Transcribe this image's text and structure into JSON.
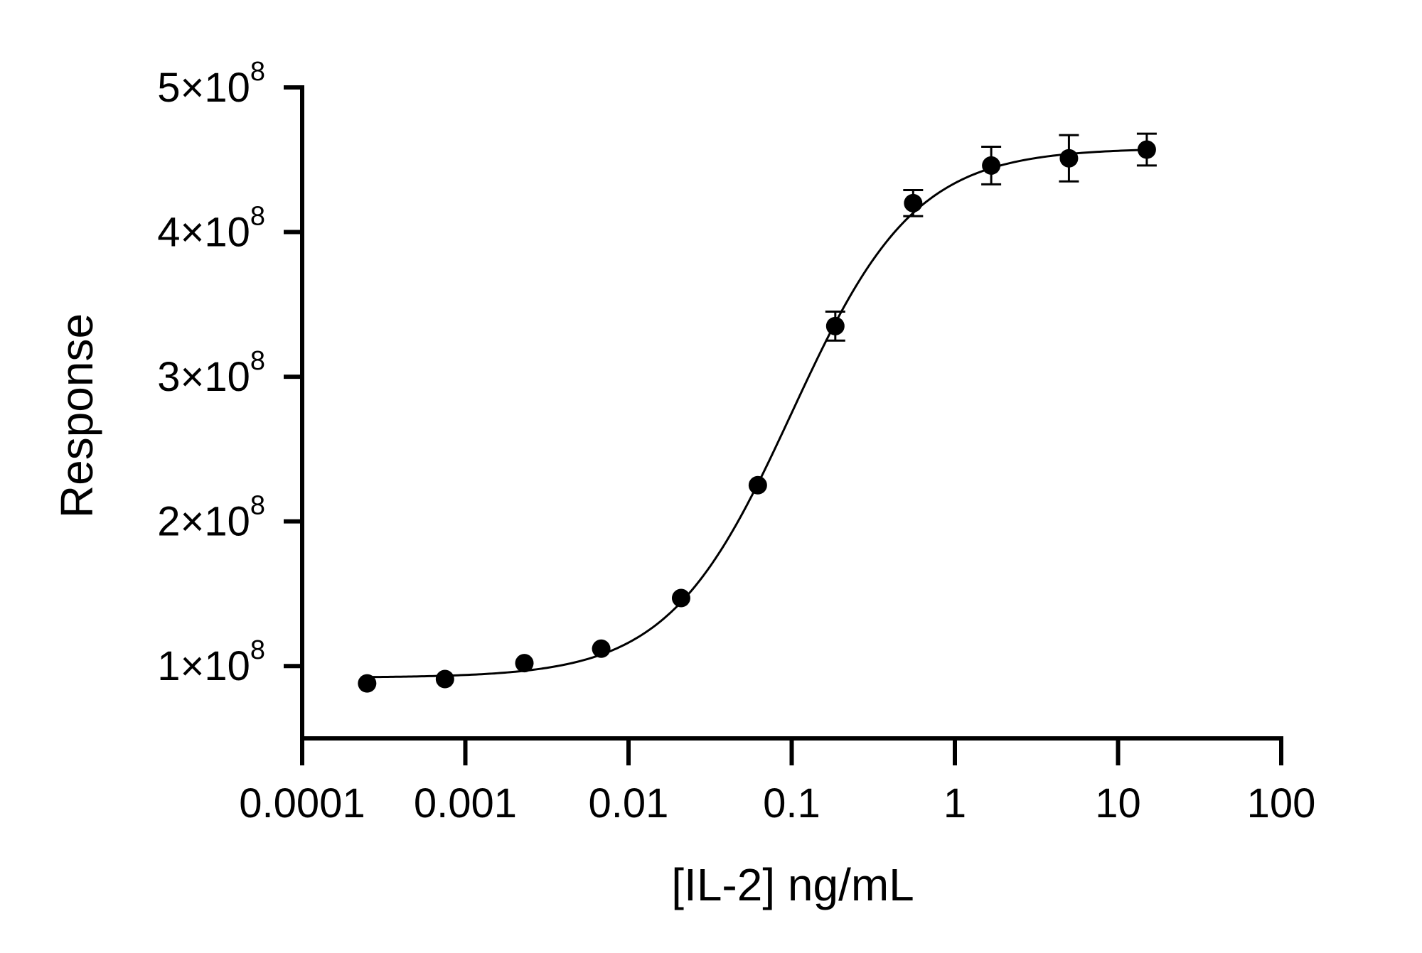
{
  "chart_data": {
    "type": "scatter",
    "xlabel": "[IL-2] ng/mL",
    "ylabel": "Response",
    "x_scale": "log",
    "xlim": [
      0.0001,
      100
    ],
    "ylim": [
      50000000,
      500000000
    ],
    "x_ticks": [
      0.0001,
      0.001,
      0.01,
      0.1,
      1,
      10,
      100
    ],
    "x_tick_labels": [
      "0.0001",
      "0.001",
      "0.01",
      "0.1",
      "1",
      "10",
      "100"
    ],
    "y_ticks": [
      100000000,
      200000000,
      300000000,
      400000000,
      500000000
    ],
    "y_tick_labels": [
      {
        "mantissa": "1",
        "times": "×",
        "base": "10",
        "exp": "8"
      },
      {
        "mantissa": "2",
        "times": "×",
        "base": "10",
        "exp": "8"
      },
      {
        "mantissa": "3",
        "times": "×",
        "base": "10",
        "exp": "8"
      },
      {
        "mantissa": "4",
        "times": "×",
        "base": "10",
        "exp": "8"
      },
      {
        "mantissa": "5",
        "times": "×",
        "base": "10",
        "exp": "8"
      }
    ],
    "grid": false,
    "series": [
      {
        "marker": "filled-circle",
        "color": "#000000",
        "points": [
          {
            "x": 0.00025,
            "y": 88000000,
            "err": 0
          },
          {
            "x": 0.00075,
            "y": 91000000,
            "err": 0
          },
          {
            "x": 0.0023,
            "y": 102000000,
            "err": 0
          },
          {
            "x": 0.0068,
            "y": 112000000,
            "err": 0
          },
          {
            "x": 0.021,
            "y": 147000000,
            "err": 0
          },
          {
            "x": 0.062,
            "y": 225000000,
            "err": 0
          },
          {
            "x": 0.185,
            "y": 335000000,
            "err": 10000000
          },
          {
            "x": 0.555,
            "y": 420000000,
            "err": 9000000
          },
          {
            "x": 1.67,
            "y": 446000000,
            "err": 13000000
          },
          {
            "x": 5.0,
            "y": 451000000,
            "err": 16000000
          },
          {
            "x": 15.0,
            "y": 457000000,
            "err": 11000000
          }
        ]
      }
    ],
    "fit": {
      "model": "four-parameter-logistic",
      "bottom": 92000000,
      "top": 458000000,
      "ec50": 0.1,
      "hill": 1.15
    }
  }
}
